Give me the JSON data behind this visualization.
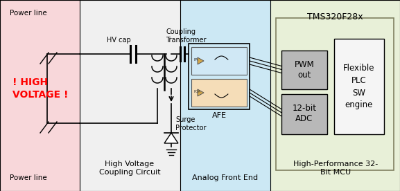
{
  "section1_color": "#f8d7da",
  "section2_color": "#f0f0f0",
  "section3_color": "#cce8f4",
  "section4_color": "#e8f0d8",
  "gray_box_color": "#b8b8b8",
  "white_box_color": "#f5f5f5",
  "title": "TMS320F28x",
  "label_powerline_top": "Power line",
  "label_powerline_bot": "Power line",
  "label_high_voltage": "! HIGH\nVOLTAGE !",
  "label_hvcap": "HV cap",
  "label_coupling": "Coupling\nTransformer",
  "label_afe": "AFE",
  "label_surge": "Surge\nProtector",
  "label_pwm": "PWM\nout",
  "label_adc": "12-bit\nADC",
  "label_flex": "Flexible\nPLC\nSW\nengine",
  "label_sec1": "High Voltage\nCoupling Circuit",
  "label_sec2": "Analog Front End",
  "label_sec3": "High-Performance 32-\nBit MCU"
}
